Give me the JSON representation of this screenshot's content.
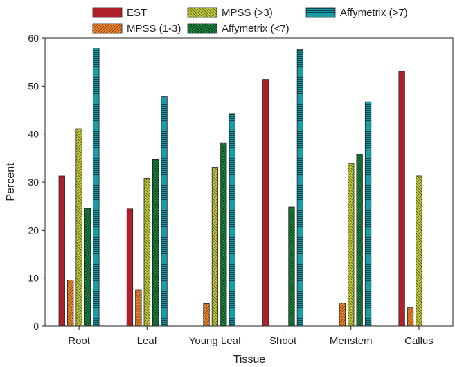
{
  "chart_data": {
    "type": "bar",
    "title": "",
    "xlabel": "Tissue",
    "ylabel": "Percent",
    "ylim": [
      0,
      60
    ],
    "yticks": [
      0,
      10,
      20,
      30,
      40,
      50,
      60
    ],
    "grid": false,
    "legend_position": "top",
    "categories": [
      "Root",
      "Leaf",
      "Young Leaf",
      "Shoot",
      "Meristem",
      "Callus"
    ],
    "series": [
      {
        "name": "EST",
        "color": "#b0202a",
        "pattern": "solid",
        "values": [
          31.3,
          24.4,
          null,
          51.4,
          null,
          53.1
        ]
      },
      {
        "name": "MPSS (1-3)",
        "color": "#f08a30",
        "pattern": "diagonal",
        "values": [
          9.6,
          7.5,
          4.7,
          null,
          4.8,
          3.8
        ]
      },
      {
        "name": "MPSS (>3)",
        "color": "#c8d040",
        "pattern": "backdiagonal",
        "values": [
          41.1,
          30.8,
          33.1,
          null,
          33.8,
          31.3
        ]
      },
      {
        "name": "Affymetrix (<7)",
        "color": "#1e9a48",
        "pattern": "crosshatch",
        "values": [
          24.5,
          34.7,
          38.2,
          24.8,
          35.8,
          null
        ]
      },
      {
        "name": "Affymetrix (>7)",
        "color": "#1a9ba8",
        "pattern": "horizontal",
        "values": [
          57.9,
          47.8,
          44.3,
          57.6,
          46.7,
          null
        ]
      }
    ]
  }
}
